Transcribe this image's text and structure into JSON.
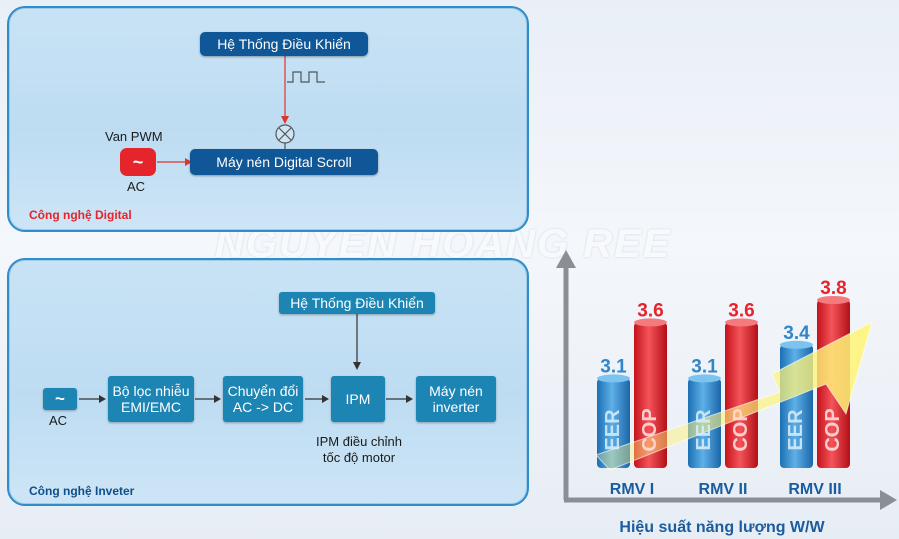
{
  "watermark": "NGUYEN HOANG REE",
  "digital": {
    "panel_label": "Công nghệ Digital",
    "control_system": "Hệ Thống Điều Khiển",
    "valve_label": "Van PWM",
    "ac_label": "AC",
    "compressor": "Máy nén Digital Scroll"
  },
  "inverter": {
    "panel_label": "Công nghệ Inveter",
    "control_system": "Hệ Thống Điều Khiển",
    "ac_label": "AC",
    "filter_line1": "Bộ lọc nhiễu",
    "filter_line2": "EMI/EMC",
    "converter_line1": "Chuyển đổi",
    "converter_line2": "AC -> DC",
    "ipm": "IPM",
    "compressor_line1": "Máy nén",
    "compressor_line2": "inverter",
    "ipm_note_line1": "IPM điều chỉnh",
    "ipm_note_line2": "tốc độ motor"
  },
  "colors": {
    "eer": "#2f86c8",
    "cop": "#e5242b",
    "dark_box": "#0f5797",
    "teal_box": "#1c85b4",
    "panel_border": "#2f8ec9"
  },
  "chart_data": {
    "type": "bar",
    "categories": [
      "RMV I",
      "RMV II",
      "RMV III"
    ],
    "series": [
      {
        "name": "EER",
        "values": [
          3.1,
          3.1,
          3.4
        ]
      },
      {
        "name": "COP",
        "values": [
          3.6,
          3.6,
          3.8
        ]
      }
    ],
    "xlabel": "Hiệu suất năng lượng W/W",
    "ylabel": "",
    "legend": "labels printed on bars"
  }
}
